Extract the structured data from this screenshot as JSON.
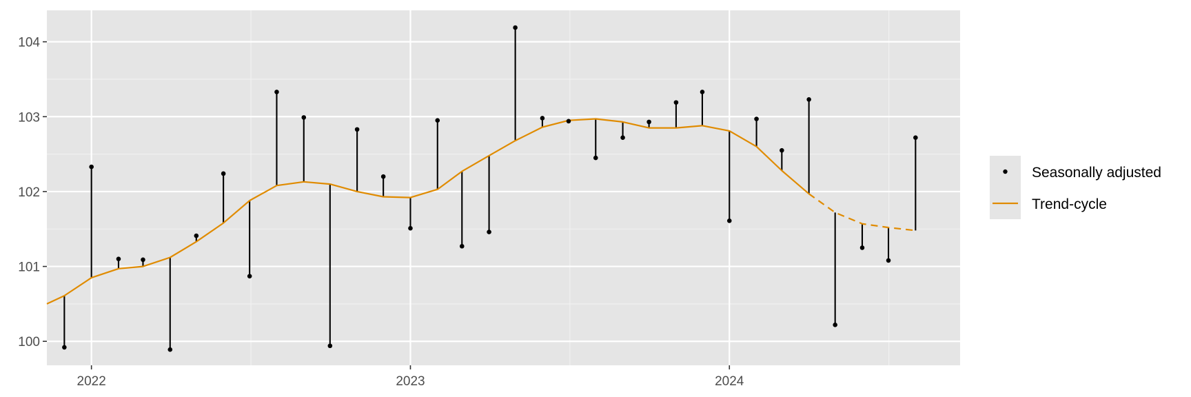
{
  "chart_data": {
    "type": "line",
    "title": "",
    "xlabel": "",
    "ylabel": "",
    "x_start": "2021-12-01",
    "xlim": [
      "2021-11-11",
      "2024-09-21"
    ],
    "ylim": [
      99.68,
      104.42
    ],
    "x_ticks": [
      {
        "date": "2022-01-01",
        "label": "2022"
      },
      {
        "date": "2023-01-01",
        "label": "2023"
      },
      {
        "date": "2024-01-01",
        "label": "2024"
      }
    ],
    "y_ticks": [
      100,
      101,
      102,
      103,
      104
    ],
    "grid": true,
    "legend_position": "right",
    "series": [
      {
        "name": "Seasonally adjusted",
        "kind": "points",
        "color": "#000000",
        "values": [
          99.92,
          102.33,
          101.1,
          101.09,
          99.89,
          101.41,
          102.24,
          100.87,
          103.33,
          102.99,
          99.94,
          102.83,
          102.2,
          101.51,
          102.95,
          101.27,
          101.46,
          104.19,
          102.98,
          102.94,
          102.45,
          102.72,
          102.93,
          103.19,
          103.33,
          101.61,
          102.97,
          102.55,
          103.23,
          100.22,
          101.25,
          101.08,
          102.72
        ]
      },
      {
        "name": "Trend-cycle",
        "kind": "line",
        "color": "#e08b00",
        "leading_value": 100.5,
        "values": [
          100.61,
          100.85,
          100.97,
          101.0,
          101.12,
          101.33,
          101.58,
          101.88,
          102.08,
          102.13,
          102.1,
          102.0,
          101.93,
          101.92,
          102.03,
          102.27,
          102.48,
          102.68,
          102.86,
          102.95,
          102.97,
          102.93,
          102.85,
          102.85,
          102.88,
          102.81,
          102.6,
          102.28,
          101.97,
          101.72,
          101.57,
          101.52,
          101.48
        ],
        "dashed_from_index": 28
      }
    ]
  }
}
